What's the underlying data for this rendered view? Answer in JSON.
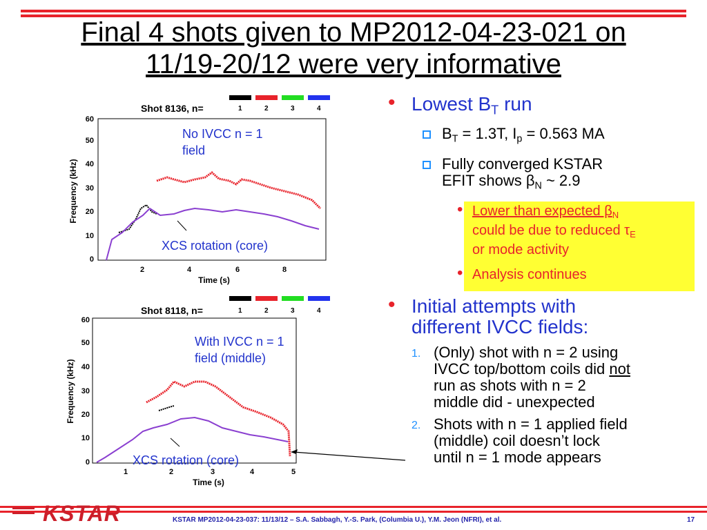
{
  "title": {
    "line1": "Final 4 shots given to MP2012-04-23-021 on",
    "line2": "11/19-20/12 were very informative"
  },
  "plot1": {
    "shot_label": "Shot 8136, n=",
    "legend": [
      "1",
      "2",
      "3",
      "4"
    ],
    "legend_colors": [
      "#000000",
      "#e8232b",
      "#22dd22",
      "#2233ee"
    ],
    "ylabel": "Frequency (kHz)",
    "xlabel": "Time (s)",
    "y_ticks": [
      "60",
      "50",
      "40",
      "30",
      "20",
      "10",
      "0"
    ],
    "x_ticks": [
      "2",
      "4",
      "6",
      "8"
    ],
    "annotation": "No IVCC n = 1 field",
    "annotation_line1": "No IVCC n = 1",
    "annotation_line2": "field",
    "xcs_label": "XCS rotation (core)"
  },
  "plot2": {
    "shot_label": "Shot 8118, n=",
    "legend": [
      "1",
      "2",
      "3",
      "4"
    ],
    "ylabel": "Frequency (kHz)",
    "xlabel": "Time (s)",
    "y_ticks": [
      "60",
      "50",
      "40",
      "30",
      "20",
      "10",
      "0"
    ],
    "x_ticks": [
      "1",
      "2",
      "3",
      "4",
      "5"
    ],
    "annotation_line1": "With IVCC n = 1",
    "annotation_line2": "field (middle)",
    "xcs_label": "XCS rotation (core)"
  },
  "bullets": {
    "b1": "Lowest B",
    "b1_sub": "T",
    "b1_tail": " run",
    "b1a_pre": "B",
    "b1a_sub1": "T",
    "b1a_mid": " = 1.3T, I",
    "b1a_sub2": "p",
    "b1a_tail": " = 0.563 MA",
    "b1b_line1": "Fully converged KSTAR",
    "b1b_line2": "EFIT shows β",
    "b1b_sub": "N",
    "b1b_tail": " ~ 2.9",
    "b1c_a": "Lower than expected β",
    "b1c_sub": "N",
    "b1c_b": "could be due to reduced τ",
    "b1c_sub2": "E",
    "b1c_c": "or mode activity",
    "b1d": "Analysis continues",
    "b2_line1": "Initial attempts with",
    "b2_line2": "different IVCC fields:",
    "n1": "1.",
    "n1_a": "(Only) shot with n = 2 using",
    "n1_b": "IVCC top/bottom coils did ",
    "n1_not": "not",
    "n1_c": "run as shots with n = 2",
    "n1_d": "middle did - unexpected",
    "n2": "2.",
    "n2_a": "Shots with n = 1 applied field",
    "n2_b": "(middle) coil doesn’t lock",
    "n2_c": "until n = 1 mode appears"
  },
  "footer": {
    "logo": "KSTAR",
    "text": "KSTAR MP2012-04-23-037: 11/13/12 – S.A. Sabbagh, Y.-S. Park, (Columbia U.), Y.M. Jeon (NFRI), et al.",
    "page": "17"
  },
  "colors": {
    "accent_red": "#e8232b",
    "text_blue": "#2233cc",
    "highlight": "#ffff33",
    "xcs_purple": "#8a3fd0"
  }
}
